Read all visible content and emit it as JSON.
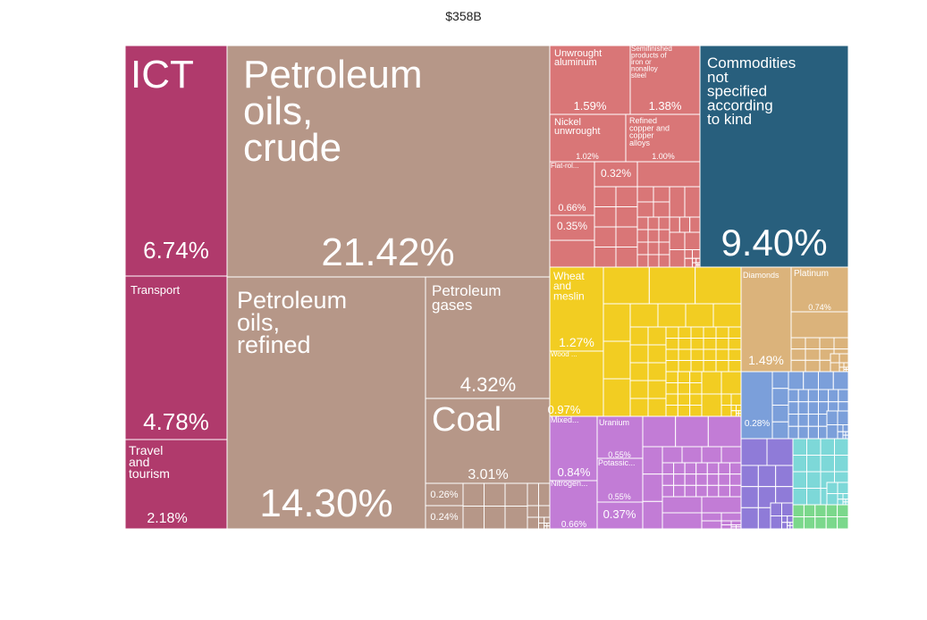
{
  "title": "$358B",
  "colors": {
    "services": "#B03A6C",
    "mineral": "#B69788",
    "metals": "#D97677",
    "unspecified": "#285F7D",
    "vegetable": "#F2CD22",
    "precious": "#DBB37B",
    "chemicals": "#C27CD6",
    "machinery": "#7B9FDA",
    "transport": "#8F7BD8",
    "textiles": "#7DD8D8",
    "animal": "#7BD88C",
    "border": "#ffffff"
  },
  "chart_data": {
    "type": "treemap",
    "title": "$358B",
    "tiles": [
      {
        "label": "ICT",
        "value": 6.74,
        "value_label": "6.74%",
        "group": "services"
      },
      {
        "label": "Transport",
        "value": 4.78,
        "value_label": "4.78%",
        "group": "services"
      },
      {
        "label": "Travel and tourism",
        "value": 2.18,
        "value_label": "2.18%",
        "group": "services"
      },
      {
        "label": "Petroleum oils, crude",
        "value": 21.42,
        "value_label": "21.42%",
        "group": "mineral"
      },
      {
        "label": "Petroleum oils, refined",
        "value": 14.3,
        "value_label": "14.30%",
        "group": "mineral"
      },
      {
        "label": "Petroleum gases",
        "value": 4.32,
        "value_label": "4.32%",
        "group": "mineral"
      },
      {
        "label": "Coal",
        "value": 3.01,
        "value_label": "3.01%",
        "group": "mineral"
      },
      {
        "label": "",
        "value": 0.26,
        "value_label": "0.26%",
        "group": "mineral"
      },
      {
        "label": "",
        "value": 0.24,
        "value_label": "0.24%",
        "group": "mineral"
      },
      {
        "label": "Unwrought aluminum",
        "value": 1.59,
        "value_label": "1.59%",
        "group": "metals"
      },
      {
        "label": "Semifinished products of iron or nonalloy steel",
        "value": 1.38,
        "value_label": "1.38%",
        "group": "metals"
      },
      {
        "label": "Nickel unwrought",
        "value": 1.02,
        "value_label": "1.02%",
        "group": "metals"
      },
      {
        "label": "Refined copper and copper alloys",
        "value": 1.0,
        "value_label": "1.00%",
        "group": "metals"
      },
      {
        "label": "Flat-rol...",
        "value": 0.66,
        "value_label": "0.66%",
        "group": "metals"
      },
      {
        "label": "",
        "value": 0.35,
        "value_label": "0.35%",
        "group": "metals"
      },
      {
        "label": "",
        "value": 0.32,
        "value_label": "0.32%",
        "group": "metals"
      },
      {
        "label": "Commodities not specified according to kind",
        "value": 9.4,
        "value_label": "9.40%",
        "group": "unspecified"
      },
      {
        "label": "Wheat and meslin",
        "value": 1.27,
        "value_label": "1.27%",
        "group": "vegetable"
      },
      {
        "label": "Wood ...",
        "value": 0.97,
        "value_label": "0.97%",
        "group": "vegetable"
      },
      {
        "label": "Diamonds",
        "value": 1.49,
        "value_label": "1.49%",
        "group": "precious"
      },
      {
        "label": "Platinum",
        "value": 0.74,
        "value_label": "0.74%",
        "group": "precious"
      },
      {
        "label": "Mixed...",
        "value": 0.84,
        "value_label": "0.84%",
        "group": "chemicals"
      },
      {
        "label": "Uranium",
        "value": 0.55,
        "value_label": "0.55%",
        "group": "chemicals"
      },
      {
        "label": "Potassic...",
        "value": 0.55,
        "value_label": "0.55%",
        "group": "chemicals"
      },
      {
        "label": "Nitrogen...",
        "value": 0.66,
        "value_label": "0.66%",
        "group": "chemicals"
      },
      {
        "label": "",
        "value": 0.37,
        "value_label": "0.37%",
        "group": "chemicals"
      },
      {
        "label": "",
        "value": 0.28,
        "value_label": "0.28%",
        "group": "machinery"
      }
    ]
  }
}
